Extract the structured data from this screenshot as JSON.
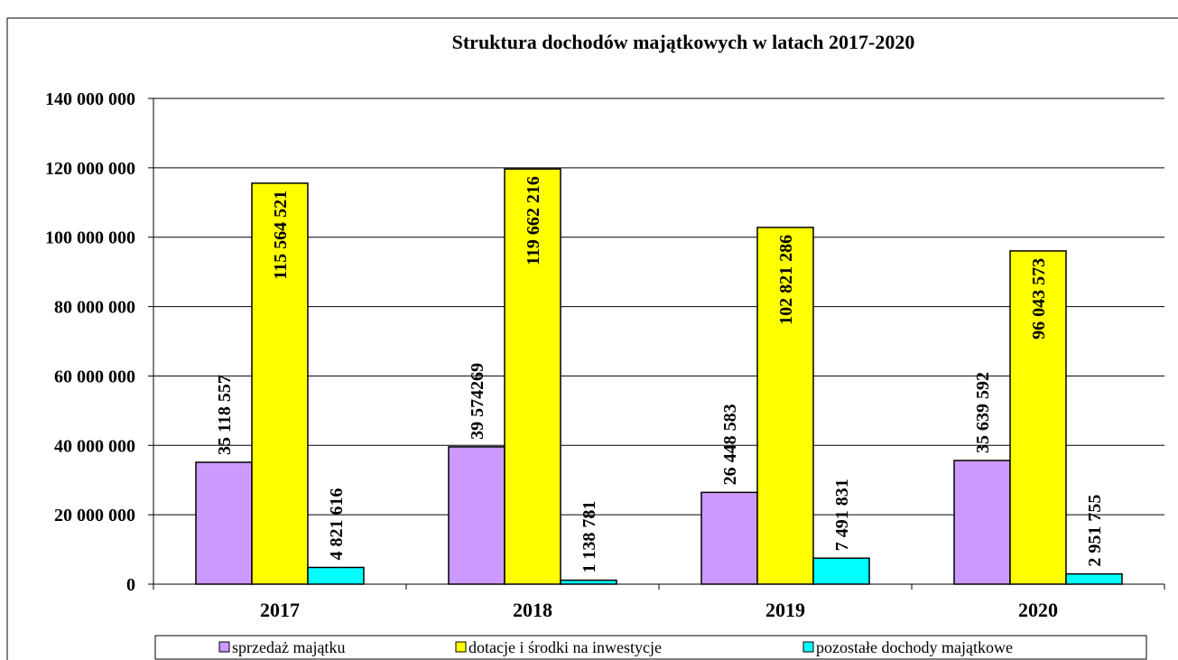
{
  "chart_data": {
    "type": "bar",
    "title": "Struktura dochodów majątkowych w latach 2017-2020",
    "categories": [
      "2017",
      "2018",
      "2019",
      "2020"
    ],
    "series": [
      {
        "name": "sprzedaż majątku",
        "color": "#cc99ff",
        "values": [
          35118557,
          39574269,
          26448583,
          35639592
        ],
        "value_labels": [
          "35 118 557",
          "39 574269",
          "26 448 583",
          "35 639 592"
        ]
      },
      {
        "name": "dotacje i środki na inwestycje",
        "color": "#ffff00",
        "values": [
          115564521,
          119662216,
          102821286,
          96043573
        ],
        "value_labels": [
          "115 564 521",
          "119 662 216",
          "102 821 286",
          "96 043 573"
        ]
      },
      {
        "name": "pozostałe dochody majątkowe",
        "color": "#00ffff",
        "values": [
          4821616,
          1138781,
          7491831,
          2951755
        ],
        "value_labels": [
          "4 821 616",
          "1 138 781",
          "7 491 831",
          "2 951 755"
        ]
      }
    ],
    "ylim": [
      0,
      140000000
    ],
    "yticks": [
      0,
      {
        "value": 20000000,
        "label": "20 000 000"
      },
      {
        "value": 40000000,
        "label": "40 000 000"
      },
      {
        "value": 60000000,
        "label": "60 000 000"
      },
      {
        "value": 80000000,
        "label": "80 000 000"
      },
      {
        "value": 100000000,
        "label": "100 000 000"
      },
      {
        "value": 120000000,
        "label": "120 000 000"
      },
      {
        "value": 140000000,
        "label": "140 000 000"
      }
    ],
    "grid": true
  }
}
